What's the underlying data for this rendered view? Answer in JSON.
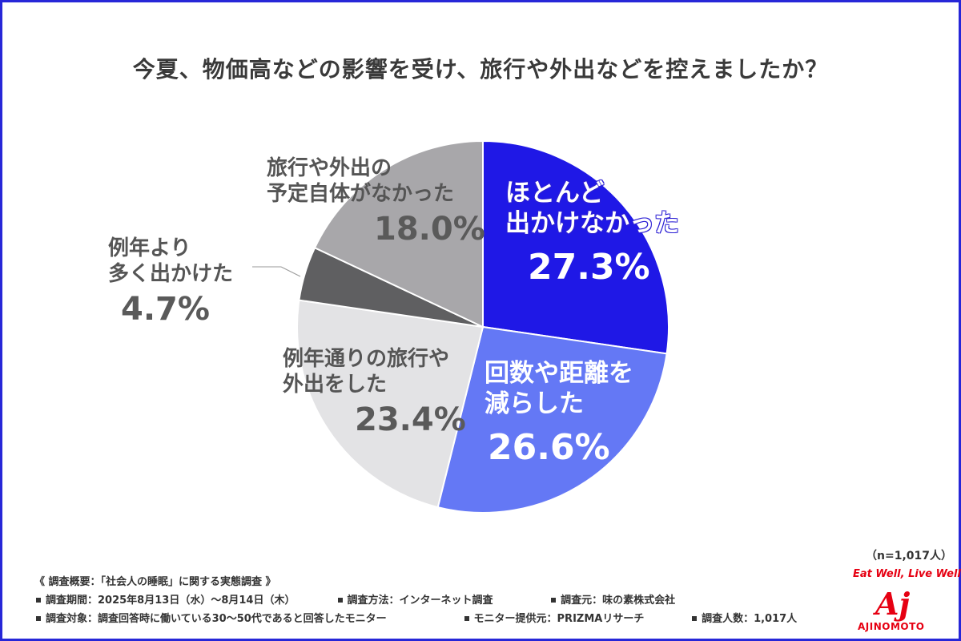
{
  "title": "今夏、物価高などの影響を受け、旅行や外出などを控えましたか？",
  "chart_data": {
    "type": "pie",
    "title": "今夏、物価高などの影響を受け、旅行や外出などを控えましたか？",
    "start": "top-clockwise",
    "slices": [
      {
        "label_lines": [
          "ほとんど",
          "出かけなかった"
        ],
        "value": 27.3,
        "value_text": "27.3%",
        "color": "#1f18e6"
      },
      {
        "label_lines": [
          "回数や距離を",
          "減らした"
        ],
        "value": 26.6,
        "value_text": "26.6%",
        "color": "#6478f5"
      },
      {
        "label_lines": [
          "例年通りの旅行や",
          "外出をした"
        ],
        "value": 23.4,
        "value_text": "23.4%",
        "color": "#e3e3e5"
      },
      {
        "label_lines": [
          "例年より",
          "多く出かけた"
        ],
        "value": 4.7,
        "value_text": "4.7%",
        "color": "#5f5f61"
      },
      {
        "label_lines": [
          "旅行や外出の",
          "予定自体がなかった"
        ],
        "value": 18.0,
        "value_text": "18.0%",
        "color": "#a8a7aa"
      }
    ]
  },
  "sample_note": "（n=1,017人）",
  "footer": {
    "heading": "《 調査概要：「社会人の睡眠」に関する実態調査 》",
    "period": "調査期間：2025年8月13日（水）～8月14日（木）",
    "method": "調査方法：インターネット調査",
    "source": "調査元：味の素株式会社",
    "target": "調査対象：調査回答時に働いている30～50代であると回答したモニター",
    "provider": "モニター提供元：PRIZMAリサーチ",
    "count": "調査人数：1,017人"
  },
  "logo": {
    "tagline": "Eat Well, Live Well.",
    "mark": "Aj",
    "wordmark": "AJINOMOTO",
    "color": "#e60012"
  }
}
